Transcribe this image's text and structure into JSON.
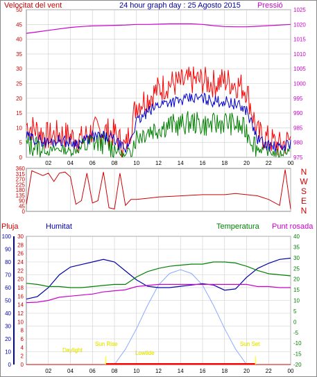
{
  "header": {
    "wind_speed_label": "Velocitat del vent",
    "title": "24 hour graph day : 25 Agosto 2015",
    "pressure_label": "Pressió"
  },
  "lower_labels": {
    "rain": "Pluja",
    "humidity": "Humitat",
    "temperature": "Temperatura",
    "dew_point": "Punt rosada"
  },
  "colors": {
    "wind_speed": "#ff0000",
    "wind_gust": "#ff0000",
    "wind_avg": "#0000cc",
    "wind_low": "#008000",
    "pressure": "#cc00cc",
    "direction": "#cc0000",
    "humidity": "#0000aa",
    "temperature": "#008000",
    "dew_point": "#cc00cc",
    "solar": "#88aaff",
    "sun_events": "#ffff00",
    "grid": "#cccccc"
  },
  "chart_data": [
    {
      "type": "line",
      "name": "wind-speed-and-pressure",
      "x_ticks": [
        "02",
        "04",
        "06",
        "08",
        "10",
        "12",
        "14",
        "16",
        "18",
        "20",
        "22",
        "00"
      ],
      "y_left_ticks": [
        0,
        5,
        10,
        15,
        20,
        25,
        30,
        35,
        40,
        45,
        50
      ],
      "y_right_ticks": [
        975,
        980,
        985,
        990,
        995,
        1000,
        1005,
        1010,
        1015,
        1020,
        1025
      ],
      "ylim_left": [
        0,
        50
      ],
      "ylim_right": [
        975,
        1025
      ],
      "x_hours": [
        0,
        1,
        2,
        3,
        4,
        5,
        6,
        7,
        8,
        9,
        10,
        11,
        12,
        13,
        14,
        15,
        16,
        17,
        18,
        19,
        20,
        21,
        22,
        23,
        24
      ],
      "series": [
        {
          "key": "gust",
          "values": [
            11,
            9,
            7,
            8,
            7,
            6,
            9,
            9,
            8,
            3,
            18,
            20,
            23,
            25,
            25,
            26,
            26,
            25,
            26,
            25,
            23,
            8,
            6,
            4,
            6
          ]
        },
        {
          "key": "avg",
          "values": [
            7,
            6,
            5,
            6,
            5,
            5,
            7,
            7,
            6,
            2,
            12,
            15,
            18,
            19,
            19,
            20,
            20,
            19,
            19,
            18,
            16,
            6,
            4,
            3,
            5
          ]
        },
        {
          "key": "low",
          "values": [
            4,
            4,
            2,
            3,
            2,
            3,
            5,
            5,
            3,
            0,
            7,
            9,
            10,
            11,
            11,
            12,
            11,
            11,
            12,
            11,
            9,
            3,
            2,
            1,
            3
          ]
        },
        {
          "key": "pressure",
          "values": [
            1017,
            1017.5,
            1018,
            1018.5,
            1019,
            1019.3,
            1019.5,
            1019.6,
            1019.7,
            1019.8,
            1020,
            1020,
            1020.1,
            1020.2,
            1020.2,
            1020.2,
            1020,
            1019.6,
            1019.3,
            1019.2,
            1019.2,
            1019.4,
            1019.6,
            1019.8,
            1020
          ]
        }
      ]
    },
    {
      "type": "line",
      "name": "wind-direction",
      "y_ticks": [
        0,
        45,
        90,
        135,
        180,
        225,
        270,
        315,
        360
      ],
      "ylim": [
        0,
        360
      ],
      "compass_labels": [
        "N",
        "W",
        "S",
        "E",
        "N"
      ],
      "x_hours": [
        0,
        0.5,
        1,
        1.5,
        2,
        2.5,
        3,
        3.5,
        4,
        4.5,
        5,
        5.5,
        6,
        6.5,
        7,
        7.5,
        8,
        8.5,
        9,
        9.5,
        10,
        11,
        12,
        13,
        14,
        15,
        16,
        17,
        18,
        19,
        20,
        21,
        22,
        23,
        23.5,
        24
      ],
      "values": [
        60,
        340,
        320,
        300,
        320,
        250,
        320,
        330,
        290,
        60,
        90,
        320,
        70,
        90,
        330,
        30,
        20,
        320,
        50,
        100,
        100,
        110,
        120,
        125,
        130,
        135,
        140,
        140,
        140,
        150,
        140,
        130,
        100,
        50,
        350,
        20
      ]
    },
    {
      "type": "line",
      "name": "temperature-humidity",
      "y_left_ticks": [
        0,
        10,
        20,
        30,
        40,
        50,
        60,
        70,
        80,
        90,
        100
      ],
      "y_rain_ticks": [
        0,
        2,
        4,
        6,
        8,
        10,
        12,
        14,
        16,
        18,
        20,
        22,
        24,
        26,
        28,
        30
      ],
      "y_right_ticks": [
        -20,
        -15,
        -10,
        -5,
        0,
        5,
        10,
        15,
        20,
        25,
        30,
        35,
        40
      ],
      "ylim_left": [
        0,
        100
      ],
      "ylim_right": [
        -20,
        40
      ],
      "x_hours": [
        0,
        1,
        2,
        3,
        4,
        5,
        6,
        7,
        8,
        9,
        10,
        11,
        12,
        13,
        14,
        15,
        16,
        17,
        18,
        19,
        20,
        21,
        22,
        23,
        24
      ],
      "series": [
        {
          "key": "humidity",
          "values": [
            51,
            53,
            60,
            70,
            76,
            78,
            80,
            82,
            80,
            73,
            66,
            61,
            60,
            60,
            61,
            62,
            63,
            62,
            58,
            59,
            68,
            75,
            79,
            82,
            83
          ]
        },
        {
          "key": "temperature",
          "values": [
            18,
            17.5,
            16.5,
            16.5,
            16,
            16,
            16.5,
            17,
            17.5,
            17.5,
            21,
            23.5,
            25,
            26,
            26.5,
            27,
            27,
            28,
            28,
            27.5,
            26,
            24,
            22.5,
            22,
            21.5
          ]
        },
        {
          "key": "dew_point",
          "values": [
            9,
            9.2,
            10,
            11.5,
            12,
            12.5,
            13,
            14,
            14.5,
            15,
            16.5,
            17,
            17.5,
            17.5,
            17.5,
            17.5,
            17.5,
            17.5,
            17.5,
            17.5,
            17.5,
            16.5,
            16.5,
            16,
            16
          ]
        },
        {
          "key": "solar",
          "values": [
            0,
            0,
            0,
            0,
            0,
            0,
            0,
            0,
            0,
            12,
            28,
            46,
            62,
            71,
            74,
            71,
            62,
            46,
            28,
            12,
            0,
            0,
            0,
            0,
            0
          ]
        },
        {
          "key": "rain",
          "values": [
            0,
            0,
            0,
            0,
            0,
            0,
            0,
            0,
            0,
            0,
            0,
            0,
            0,
            0,
            0,
            0,
            0,
            0,
            0,
            0,
            0,
            0,
            0,
            0,
            0
          ]
        }
      ],
      "annotations": {
        "daylight": "Daylight",
        "sun_rise": "Sun Rise",
        "lowtide": "Lowtide",
        "sun_set": "Sun Set"
      }
    }
  ]
}
